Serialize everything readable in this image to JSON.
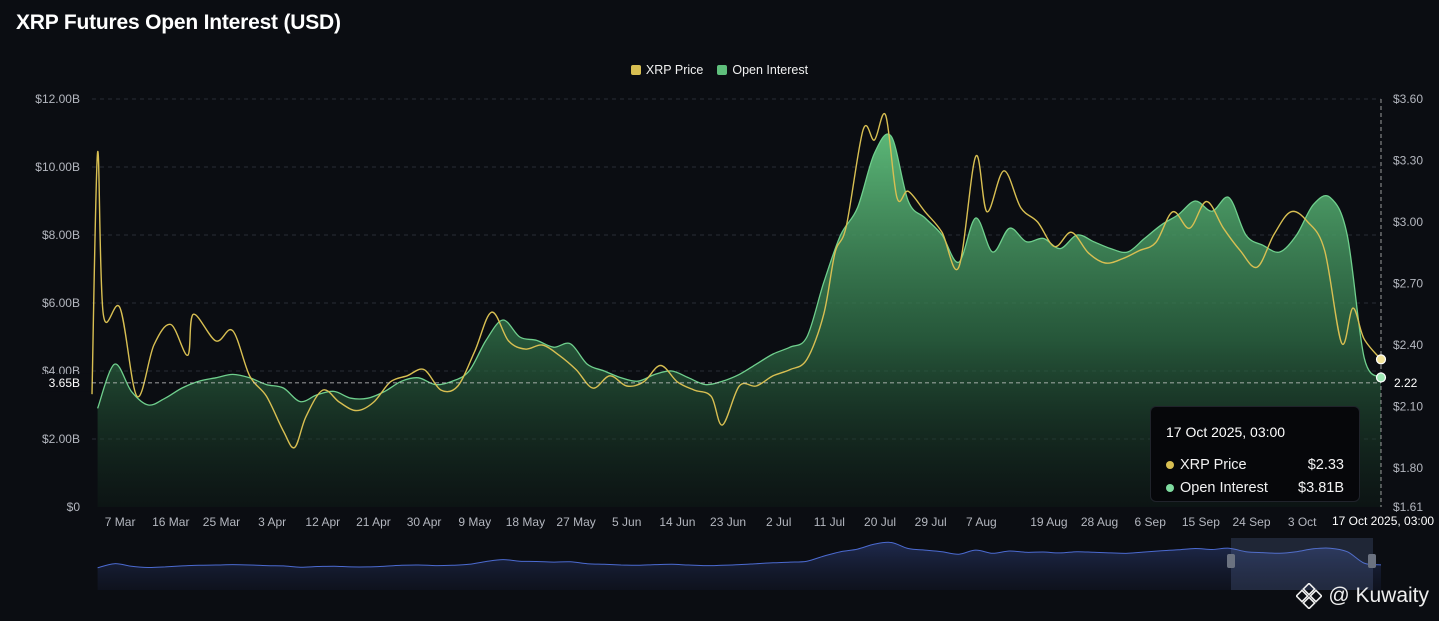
{
  "title": "XRP Futures Open Interest (USD)",
  "legend": [
    {
      "name": "XRP Price",
      "color": "#d8bf52"
    },
    {
      "name": "Open Interest",
      "color": "#5fbf7c"
    }
  ],
  "crosshair": {
    "left_label": "3.65B",
    "right_label": "2.22",
    "x_label": "17 Oct 2025, 03:00"
  },
  "tooltip": {
    "time": "17 Oct 2025, 03:00",
    "rows": [
      {
        "label": "XRP Price",
        "value": "$2.33",
        "color": "#d8bf52"
      },
      {
        "label": "Open Interest",
        "value": "$3.81B",
        "color": "#7fdca0"
      }
    ]
  },
  "watermark": "@ Kuwaity",
  "chart_data": {
    "type": "area",
    "title": "XRP Futures Open Interest (USD)",
    "x_ticks": [
      "7 Mar",
      "16 Mar",
      "25 Mar",
      "3 Apr",
      "12 Apr",
      "21 Apr",
      "30 Apr",
      "9 May",
      "18 May",
      "27 May",
      "5 Jun",
      "14 Jun",
      "23 Jun",
      "2 Jul",
      "11 Jul",
      "20 Jul",
      "29 Jul",
      "7 Aug",
      "19 Aug",
      "28 Aug",
      "6 Sep",
      "15 Sep",
      "24 Sep",
      "3 Oct"
    ],
    "y_left_ticks": [
      "$0",
      "$2.00B",
      "$4.00B",
      "$6.00B",
      "$8.00B",
      "$10.00B",
      "$12.00B"
    ],
    "y_left_range": [
      0,
      12
    ],
    "y_right_ticks": [
      "$1.61",
      "$1.80",
      "$2.10",
      "$2.40",
      "$2.70",
      "$3.00",
      "$3.30",
      "$3.60"
    ],
    "y_right_range": [
      1.61,
      3.6
    ],
    "grid": true,
    "legend_position": "top-center",
    "series": [
      {
        "name": "Open Interest",
        "axis": "left",
        "unit": "USD billions",
        "x": [
          "2025-03-03",
          "2025-03-06",
          "2025-03-09",
          "2025-03-12",
          "2025-03-15",
          "2025-03-18",
          "2025-03-21",
          "2025-03-24",
          "2025-03-27",
          "2025-03-30",
          "2025-04-02",
          "2025-04-05",
          "2025-04-08",
          "2025-04-11",
          "2025-04-14",
          "2025-04-17",
          "2025-04-20",
          "2025-04-23",
          "2025-04-26",
          "2025-04-29",
          "2025-05-02",
          "2025-05-05",
          "2025-05-08",
          "2025-05-11",
          "2025-05-14",
          "2025-05-17",
          "2025-05-20",
          "2025-05-23",
          "2025-05-26",
          "2025-05-29",
          "2025-06-01",
          "2025-06-04",
          "2025-06-07",
          "2025-06-10",
          "2025-06-13",
          "2025-06-16",
          "2025-06-19",
          "2025-06-22",
          "2025-06-25",
          "2025-06-28",
          "2025-07-01",
          "2025-07-04",
          "2025-07-07",
          "2025-07-10",
          "2025-07-13",
          "2025-07-16",
          "2025-07-19",
          "2025-07-22",
          "2025-07-25",
          "2025-07-28",
          "2025-07-31",
          "2025-08-03",
          "2025-08-06",
          "2025-08-09",
          "2025-08-12",
          "2025-08-15",
          "2025-08-18",
          "2025-08-21",
          "2025-08-24",
          "2025-08-27",
          "2025-08-30",
          "2025-09-02",
          "2025-09-05",
          "2025-09-08",
          "2025-09-11",
          "2025-09-14",
          "2025-09-17",
          "2025-09-20",
          "2025-09-23",
          "2025-09-26",
          "2025-09-29",
          "2025-10-02",
          "2025-10-05",
          "2025-10-08",
          "2025-10-11",
          "2025-10-14",
          "2025-10-17"
        ],
        "values": [
          2.9,
          4.2,
          3.4,
          3.0,
          3.2,
          3.5,
          3.7,
          3.8,
          3.9,
          3.8,
          3.6,
          3.5,
          3.1,
          3.3,
          3.4,
          3.2,
          3.2,
          3.4,
          3.7,
          3.8,
          3.6,
          3.7,
          4.0,
          4.9,
          5.5,
          5.0,
          4.9,
          4.7,
          4.8,
          4.2,
          4.0,
          3.8,
          3.7,
          3.9,
          4.0,
          3.8,
          3.6,
          3.7,
          3.9,
          4.2,
          4.5,
          4.7,
          5.0,
          6.6,
          8.0,
          8.8,
          10.4,
          10.9,
          9.0,
          8.5,
          8.0,
          7.2,
          8.5,
          7.5,
          8.2,
          7.8,
          7.9,
          7.6,
          8.0,
          7.8,
          7.6,
          7.5,
          7.9,
          8.3,
          8.6,
          9.0,
          8.7,
          9.1,
          8.0,
          7.7,
          7.5,
          8.0,
          8.9,
          9.1,
          8.0,
          4.4,
          3.81
        ]
      },
      {
        "name": "XRP Price",
        "axis": "right",
        "unit": "USD",
        "x": [
          "2025-03-02",
          "2025-03-03",
          "2025-03-04",
          "2025-03-07",
          "2025-03-10",
          "2025-03-13",
          "2025-03-16",
          "2025-03-19",
          "2025-03-20",
          "2025-03-24",
          "2025-03-27",
          "2025-03-30",
          "2025-04-02",
          "2025-04-05",
          "2025-04-07",
          "2025-04-09",
          "2025-04-12",
          "2025-04-15",
          "2025-04-18",
          "2025-04-21",
          "2025-04-24",
          "2025-04-27",
          "2025-04-30",
          "2025-05-03",
          "2025-05-06",
          "2025-05-09",
          "2025-05-12",
          "2025-05-15",
          "2025-05-18",
          "2025-05-21",
          "2025-05-24",
          "2025-05-27",
          "2025-05-30",
          "2025-06-02",
          "2025-06-05",
          "2025-06-08",
          "2025-06-11",
          "2025-06-14",
          "2025-06-17",
          "2025-06-20",
          "2025-06-22",
          "2025-06-25",
          "2025-06-28",
          "2025-07-01",
          "2025-07-04",
          "2025-07-07",
          "2025-07-10",
          "2025-07-12",
          "2025-07-14",
          "2025-07-17",
          "2025-07-19",
          "2025-07-21",
          "2025-07-23",
          "2025-07-25",
          "2025-07-28",
          "2025-07-31",
          "2025-08-03",
          "2025-08-06",
          "2025-08-08",
          "2025-08-11",
          "2025-08-14",
          "2025-08-17",
          "2025-08-20",
          "2025-08-23",
          "2025-08-26",
          "2025-08-29",
          "2025-09-01",
          "2025-09-04",
          "2025-09-07",
          "2025-09-10",
          "2025-09-13",
          "2025-09-16",
          "2025-09-19",
          "2025-09-22",
          "2025-09-25",
          "2025-09-28",
          "2025-10-01",
          "2025-10-04",
          "2025-10-07",
          "2025-10-10",
          "2025-10-12",
          "2025-10-14",
          "2025-10-17"
        ],
        "values": [
          2.16,
          3.34,
          2.55,
          2.58,
          2.15,
          2.4,
          2.5,
          2.35,
          2.55,
          2.42,
          2.47,
          2.25,
          2.15,
          1.98,
          1.9,
          2.05,
          2.18,
          2.12,
          2.08,
          2.12,
          2.22,
          2.25,
          2.28,
          2.18,
          2.2,
          2.37,
          2.56,
          2.42,
          2.38,
          2.4,
          2.35,
          2.28,
          2.19,
          2.25,
          2.2,
          2.22,
          2.3,
          2.22,
          2.18,
          2.15,
          2.01,
          2.2,
          2.2,
          2.25,
          2.28,
          2.33,
          2.55,
          2.85,
          2.98,
          3.45,
          3.4,
          3.52,
          3.12,
          3.15,
          3.05,
          2.95,
          2.78,
          3.32,
          3.05,
          3.25,
          3.07,
          3.0,
          2.88,
          2.95,
          2.85,
          2.8,
          2.82,
          2.86,
          2.9,
          3.05,
          2.97,
          3.1,
          2.97,
          2.86,
          2.78,
          2.94,
          3.05,
          3.0,
          2.86,
          2.41,
          2.58,
          2.43,
          2.33
        ]
      }
    ]
  }
}
